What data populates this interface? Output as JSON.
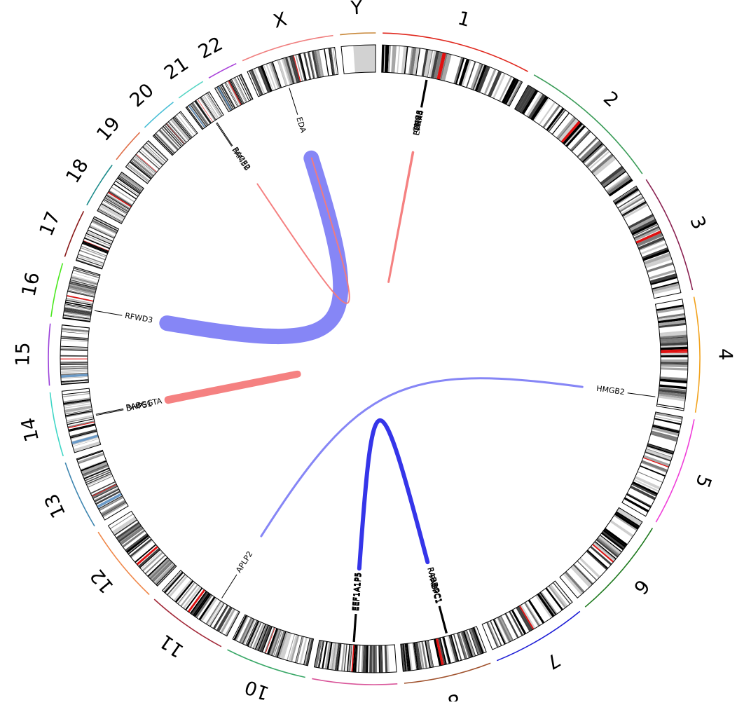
{
  "chromosomes": [
    {
      "name": "1",
      "size": 249,
      "color": "#e0281e"
    },
    {
      "name": "2",
      "size": 243,
      "color": "#3a9c58"
    },
    {
      "name": "3",
      "size": 198,
      "color": "#8a2252"
    },
    {
      "name": "4",
      "size": 191,
      "color": "#f2a21c"
    },
    {
      "name": "5",
      "size": 181,
      "color": "#ef3fd9"
    },
    {
      "name": "6",
      "size": 171,
      "color": "#1f7a1f"
    },
    {
      "name": "7",
      "size": 159,
      "color": "#1e1ed6"
    },
    {
      "name": "8",
      "size": 146,
      "color": "#a0522d"
    },
    {
      "name": "9",
      "size": 141,
      "color": "#d9569a"
    },
    {
      "name": "10",
      "size": 136,
      "color": "#3aa868"
    },
    {
      "name": "11",
      "size": 135,
      "color": "#a32a3a"
    },
    {
      "name": "12",
      "size": 133,
      "color": "#f0884a"
    },
    {
      "name": "13",
      "size": 115,
      "color": "#3f86b0"
    },
    {
      "name": "14",
      "size": 107,
      "color": "#3fd6c6"
    },
    {
      "name": "15",
      "size": 102,
      "color": "#9a3fd9"
    },
    {
      "name": "16",
      "size": 90,
      "color": "#4ae81e"
    },
    {
      "name": "17",
      "size": 81,
      "color": "#8a1a1a"
    },
    {
      "name": "18",
      "size": 78,
      "color": "#1a8a8a"
    },
    {
      "name": "19",
      "size": 59,
      "color": "#e0704a"
    },
    {
      "name": "20",
      "size": 63,
      "color": "#4abfd6"
    },
    {
      "name": "21",
      "size": 48,
      "color": "#5ad6c6"
    },
    {
      "name": "22",
      "size": 51,
      "color": "#a83fd9"
    },
    {
      "name": "X",
      "size": 155,
      "color": "#f08080"
    },
    {
      "name": "Y",
      "size": 59,
      "color": "#c8883a"
    }
  ],
  "genes": [
    {
      "name": "GNG5",
      "chrom": "1",
      "pos": 84
    },
    {
      "name": "CTBS",
      "chrom": "1",
      "pos": 85
    },
    {
      "name": "PDE4B",
      "chrom": "1",
      "pos": 86
    },
    {
      "name": "EPHX4",
      "chrom": "1",
      "pos": 87
    },
    {
      "name": "HMGB2",
      "chrom": "4",
      "pos": 174
    },
    {
      "name": "RABBGC1",
      "chrom": "8",
      "pos": 56
    },
    {
      "name": "RABBGC1",
      "chrom": "8",
      "pos": 57
    },
    {
      "name": "PABPC1",
      "chrom": "8",
      "pos": 58
    },
    {
      "name": "PABPC1",
      "chrom": "8",
      "pos": 59
    },
    {
      "name": "EEF1A1P5",
      "chrom": "9",
      "pos": 75
    },
    {
      "name": "EEF1A1P5",
      "chrom": "9",
      "pos": 76
    },
    {
      "name": "EEF1A1P5",
      "chrom": "9",
      "pos": 77
    },
    {
      "name": "EEF1A1P5",
      "chrom": "9",
      "pos": 78
    },
    {
      "name": "APLP2",
      "chrom": "11",
      "pos": 42
    },
    {
      "name": "DHPS1",
      "chrom": "14",
      "pos": 55
    },
    {
      "name": "RABGGTA",
      "chrom": "14",
      "pos": 57
    },
    {
      "name": "RFWD3",
      "chrom": "16",
      "pos": 22
    },
    {
      "name": "FAM3B",
      "chrom": "21",
      "pos": 28
    },
    {
      "name": "BACE2",
      "chrom": "21",
      "pos": 30
    },
    {
      "name": "EDA",
      "chrom": "X",
      "pos": 60
    }
  ],
  "links": [
    {
      "from": {
        "chrom": "X",
        "pos": 60
      },
      "to": {
        "chrom": "16",
        "pos": 22
      },
      "color": "#7f7ff5",
      "width": 22
    },
    {
      "from": {
        "chrom": "4",
        "pos": 174
      },
      "to": {
        "chrom": "11",
        "pos": 42
      },
      "color": "#7f7ff5",
      "width": 3
    },
    {
      "from": {
        "chrom": "9",
        "pos": 76
      },
      "to": {
        "chrom": "8",
        "pos": 58
      },
      "color": "#2a2ae8",
      "width": 6
    },
    {
      "from": {
        "chrom": "1",
        "pos": 85
      },
      "to": {
        "chrom": "1",
        "pos": 86
      },
      "color": "#f47a7a",
      "width": 3
    },
    {
      "from": {
        "chrom": "21",
        "pos": 29
      },
      "to": {
        "chrom": "X",
        "pos": 61
      },
      "color": "#f47a7a",
      "width": 2
    },
    {
      "from": {
        "chrom": "14",
        "pos": 56
      },
      "to": {
        "chrom": "14",
        "pos": 58
      },
      "color": "#f47a7a",
      "width": 10
    }
  ]
}
